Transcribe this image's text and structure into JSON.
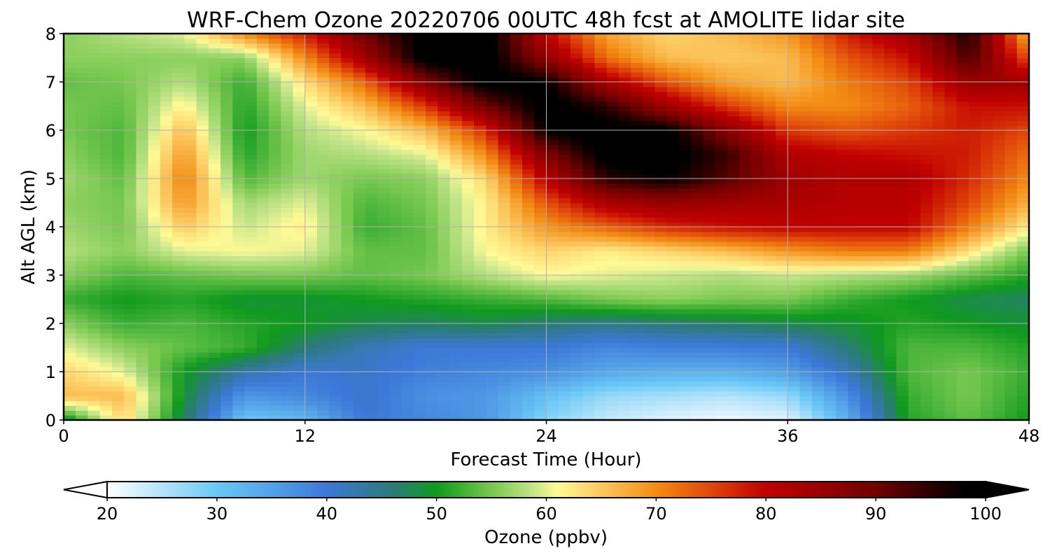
{
  "chart_data": {
    "type": "heatmap",
    "title": "WRF-Chem Ozone  20220706 00UTC 48h fcst at AMOLITE lidar site",
    "xlabel": "Forecast Time (Hour)",
    "ylabel": "Alt AGL (km)",
    "xlim": [
      0,
      48
    ],
    "ylim": [
      0,
      8
    ],
    "x_ticks": [
      0,
      12,
      24,
      36,
      48
    ],
    "y_ticks": [
      0,
      1,
      2,
      3,
      4,
      5,
      6,
      7,
      8
    ],
    "grid": true,
    "x": [
      0,
      3,
      6,
      9,
      12,
      15,
      18,
      21,
      24,
      27,
      30,
      33,
      36,
      39,
      42,
      45,
      48
    ],
    "y": [
      0,
      0.5,
      1,
      1.5,
      2,
      2.5,
      3,
      3.5,
      4,
      4.5,
      5,
      5.5,
      6,
      6.5,
      7,
      7.5,
      8
    ],
    "z": [
      [
        48,
        64,
        47,
        30,
        32,
        40,
        38,
        36,
        28,
        24,
        22,
        21,
        22,
        33,
        51,
        54,
        50
      ],
      [
        66,
        66,
        49,
        36,
        38,
        41,
        37,
        36,
        31,
        27,
        26,
        25,
        27,
        37,
        52,
        55,
        51
      ],
      [
        64,
        60,
        50,
        43,
        40,
        41,
        39,
        38,
        37,
        34,
        33,
        33,
        35,
        42,
        53,
        55,
        52
      ],
      [
        60,
        56,
        54,
        52,
        46,
        42,
        40,
        40,
        40,
        38,
        39,
        39,
        40,
        46,
        53,
        53,
        51
      ],
      [
        56,
        52,
        53,
        51,
        50,
        48,
        47,
        48,
        46,
        45,
        46,
        47,
        48,
        49,
        51,
        50,
        49
      ],
      [
        52,
        50,
        51,
        49,
        49,
        50,
        51,
        52,
        53,
        55,
        56,
        55,
        55,
        52,
        50,
        48,
        47
      ],
      [
        56,
        53,
        54,
        55,
        55,
        54,
        55,
        58,
        61,
        60,
        59,
        58,
        59,
        58,
        57,
        54,
        51
      ],
      [
        58,
        56,
        60,
        61,
        60,
        54,
        54,
        61,
        64,
        62,
        64,
        66,
        69,
        71,
        71,
        63,
        55
      ],
      [
        57,
        55,
        65,
        59,
        62,
        52,
        54,
        62,
        69,
        73,
        77,
        79,
        80,
        80,
        80,
        71,
        62
      ],
      [
        56,
        55,
        69,
        57,
        60,
        53,
        55,
        62,
        74,
        83,
        85,
        84,
        83,
        81,
        81,
        75,
        67
      ],
      [
        57,
        54,
        71,
        53,
        57,
        55,
        56,
        64,
        81,
        95,
        98,
        92,
        84,
        82,
        82,
        77,
        70
      ],
      [
        56,
        53,
        69,
        51,
        57,
        58,
        60,
        70,
        88,
        100,
        100,
        94,
        82,
        80,
        79,
        78,
        72
      ],
      [
        55,
        53,
        66,
        50,
        58,
        61,
        66,
        77,
        98,
        100,
        99,
        87,
        76,
        74,
        76,
        78,
        75
      ],
      [
        55,
        54,
        62,
        51,
        60,
        66,
        76,
        90,
        100,
        95,
        84,
        76,
        70,
        70,
        73,
        79,
        79
      ],
      [
        54,
        55,
        58,
        52,
        63,
        73,
        88,
        100,
        98,
        83,
        74,
        68,
        66,
        71,
        75,
        85,
        84
      ],
      [
        56,
        56,
        56,
        56,
        70,
        84,
        100,
        100,
        86,
        72,
        66,
        65,
        66,
        74,
        79,
        93,
        74
      ],
      [
        56,
        58,
        60,
        70,
        78,
        90,
        100,
        100,
        80,
        68,
        64,
        66,
        69,
        78,
        84,
        96,
        66
      ]
    ],
    "colorbar": {
      "label": "Ozone  (ppbv)",
      "min": 20,
      "max": 100,
      "ticks": [
        20,
        30,
        40,
        50,
        60,
        70,
        80,
        90,
        100
      ],
      "extend": "both",
      "stops": [
        {
          "v": 20,
          "c": "#ffffff"
        },
        {
          "v": 30,
          "c": "#6ac8f6"
        },
        {
          "v": 40,
          "c": "#3c78d8"
        },
        {
          "v": 46,
          "c": "#2c7a78"
        },
        {
          "v": 50,
          "c": "#0f9a1e"
        },
        {
          "v": 55,
          "c": "#78c850"
        },
        {
          "v": 59,
          "c": "#c8e68c"
        },
        {
          "v": 61,
          "c": "#fffa96"
        },
        {
          "v": 65,
          "c": "#fcc860"
        },
        {
          "v": 70,
          "c": "#f28c14"
        },
        {
          "v": 75,
          "c": "#e0460a"
        },
        {
          "v": 80,
          "c": "#c00000"
        },
        {
          "v": 90,
          "c": "#700000"
        },
        {
          "v": 98,
          "c": "#000000"
        },
        {
          "v": 100,
          "c": "#000000"
        }
      ]
    }
  }
}
